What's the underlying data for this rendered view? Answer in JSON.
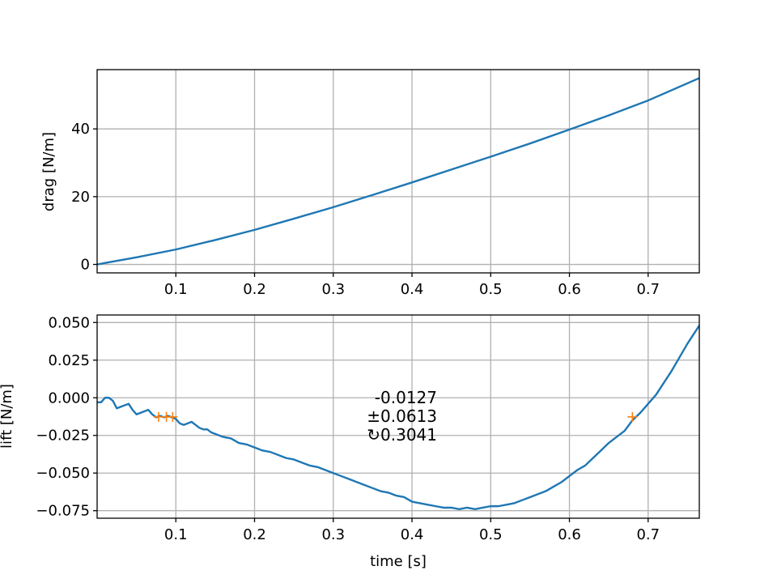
{
  "chart_data": [
    {
      "type": "line",
      "title": "",
      "xlabel": "",
      "ylabel": "drag [N/m]",
      "xlim": [
        0.0,
        0.765
      ],
      "ylim": [
        -2.5,
        57.5
      ],
      "xticks": [
        0.1,
        0.2,
        0.3,
        0.4,
        0.5,
        0.6,
        0.7
      ],
      "xtick_labels": [
        "0.1",
        "0.2",
        "0.3",
        "0.4",
        "0.5",
        "0.6",
        "0.7"
      ],
      "yticks": [
        0,
        20,
        40
      ],
      "ytick_labels": [
        "0",
        "20",
        "40"
      ],
      "grid": true,
      "series": [
        {
          "color": "#1f77b4",
          "x": [
            0.0,
            0.05,
            0.1,
            0.15,
            0.2,
            0.25,
            0.3,
            0.35,
            0.4,
            0.45,
            0.5,
            0.55,
            0.6,
            0.65,
            0.7,
            0.765
          ],
          "y": [
            0.0,
            2.1,
            4.4,
            7.2,
            10.2,
            13.5,
            16.9,
            20.5,
            24.2,
            28.0,
            31.8,
            35.7,
            39.8,
            44.0,
            48.4,
            55.0
          ]
        }
      ]
    },
    {
      "type": "line",
      "title": "",
      "xlabel": "time [s]",
      "ylabel": "lift [N/m]",
      "xlim": [
        0.0,
        0.765
      ],
      "ylim": [
        -0.08,
        0.055
      ],
      "xticks": [
        0.1,
        0.2,
        0.3,
        0.4,
        0.5,
        0.6,
        0.7
      ],
      "xtick_labels": [
        "0.1",
        "0.2",
        "0.3",
        "0.4",
        "0.5",
        "0.6",
        "0.7"
      ],
      "yticks": [
        0.05,
        0.025,
        0.0,
        -0.025,
        -0.05,
        -0.075
      ],
      "ytick_labels": [
        "0.050",
        "0.025",
        "0.000",
        "−0.025",
        "−0.050",
        "−0.075"
      ],
      "grid": true,
      "series": [
        {
          "color": "#1f77b4",
          "x": [
            0.0,
            0.005,
            0.01,
            0.015,
            0.02,
            0.025,
            0.03,
            0.035,
            0.04,
            0.045,
            0.05,
            0.055,
            0.06,
            0.065,
            0.07,
            0.075,
            0.08,
            0.085,
            0.09,
            0.095,
            0.1,
            0.105,
            0.11,
            0.115,
            0.12,
            0.125,
            0.13,
            0.135,
            0.14,
            0.145,
            0.15,
            0.16,
            0.17,
            0.18,
            0.19,
            0.2,
            0.21,
            0.22,
            0.23,
            0.24,
            0.25,
            0.26,
            0.27,
            0.28,
            0.29,
            0.3,
            0.31,
            0.32,
            0.33,
            0.34,
            0.35,
            0.36,
            0.37,
            0.38,
            0.39,
            0.4,
            0.41,
            0.42,
            0.43,
            0.44,
            0.45,
            0.46,
            0.47,
            0.48,
            0.49,
            0.5,
            0.51,
            0.52,
            0.53,
            0.54,
            0.55,
            0.56,
            0.57,
            0.58,
            0.59,
            0.6,
            0.61,
            0.62,
            0.63,
            0.64,
            0.65,
            0.66,
            0.67,
            0.68,
            0.69,
            0.7,
            0.71,
            0.72,
            0.73,
            0.74,
            0.75,
            0.765
          ],
          "y": [
            -0.003,
            -0.003,
            0.0,
            0.0,
            -0.002,
            -0.007,
            -0.006,
            -0.005,
            -0.004,
            -0.008,
            -0.011,
            -0.01,
            -0.009,
            -0.008,
            -0.011,
            -0.013,
            -0.012,
            -0.013,
            -0.012,
            -0.013,
            -0.014,
            -0.017,
            -0.018,
            -0.017,
            -0.016,
            -0.018,
            -0.02,
            -0.021,
            -0.021,
            -0.023,
            -0.024,
            -0.026,
            -0.027,
            -0.03,
            -0.031,
            -0.033,
            -0.035,
            -0.036,
            -0.038,
            -0.04,
            -0.041,
            -0.043,
            -0.045,
            -0.046,
            -0.048,
            -0.05,
            -0.052,
            -0.054,
            -0.056,
            -0.058,
            -0.06,
            -0.062,
            -0.063,
            -0.065,
            -0.066,
            -0.069,
            -0.07,
            -0.071,
            -0.072,
            -0.073,
            -0.073,
            -0.074,
            -0.073,
            -0.074,
            -0.073,
            -0.072,
            -0.072,
            -0.071,
            -0.07,
            -0.068,
            -0.066,
            -0.064,
            -0.062,
            -0.059,
            -0.056,
            -0.052,
            -0.048,
            -0.045,
            -0.04,
            -0.035,
            -0.03,
            -0.026,
            -0.022,
            -0.015,
            -0.01,
            -0.004,
            0.002,
            0.01,
            0.018,
            0.027,
            0.036,
            0.048
          ]
        },
        {
          "color": "#ff7f0e",
          "marker": "+",
          "x": [
            0.078,
            0.088,
            0.096,
            0.68
          ],
          "y": [
            -0.0127,
            -0.0127,
            -0.0127,
            -0.0127
          ]
        }
      ],
      "annotation": [
        "-0.0127",
        "±0.0613",
        "↻0.3041"
      ]
    }
  ]
}
